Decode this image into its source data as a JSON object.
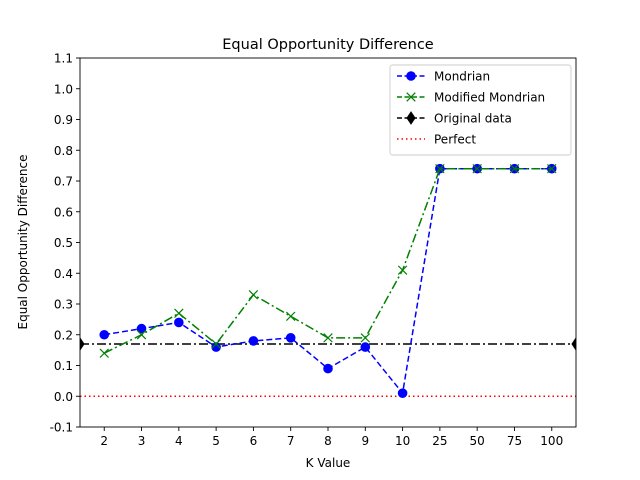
{
  "chart_data": {
    "type": "line",
    "title": "Equal Opportunity Difference",
    "xlabel": "K Value",
    "ylabel": "Equal Opportunity Difference",
    "categories": [
      "2",
      "3",
      "4",
      "5",
      "6",
      "7",
      "8",
      "9",
      "10",
      "25",
      "50",
      "75",
      "100"
    ],
    "ylim": [
      -0.1,
      1.1
    ],
    "yticks": [
      -0.1,
      0.0,
      0.1,
      0.2,
      0.3,
      0.4,
      0.5,
      0.6,
      0.7,
      0.8,
      0.9,
      1.0,
      1.1
    ],
    "grid": false,
    "legend_position": "top-right",
    "series": [
      {
        "name": "Mondrian",
        "color": "#0000ff",
        "marker": "circle",
        "linestyle": "dashed",
        "values": [
          0.2,
          0.22,
          0.24,
          0.16,
          0.18,
          0.19,
          0.09,
          0.16,
          0.01,
          0.74,
          0.74,
          0.74,
          0.74
        ]
      },
      {
        "name": "Modified Mondrian",
        "color": "#008000",
        "marker": "x",
        "linestyle": "dashdot",
        "values": [
          0.14,
          0.2,
          0.27,
          0.17,
          0.33,
          0.26,
          0.19,
          0.19,
          0.41,
          0.74,
          0.74,
          0.74,
          0.74
        ]
      }
    ],
    "reference_lines": [
      {
        "name": "Original data",
        "color": "#000000",
        "marker": "diamond",
        "linestyle": "dashdot",
        "value": 0.17
      },
      {
        "name": "Perfect",
        "color": "#ff0000",
        "marker": "none",
        "linestyle": "dotted",
        "value": 0.0
      }
    ]
  }
}
